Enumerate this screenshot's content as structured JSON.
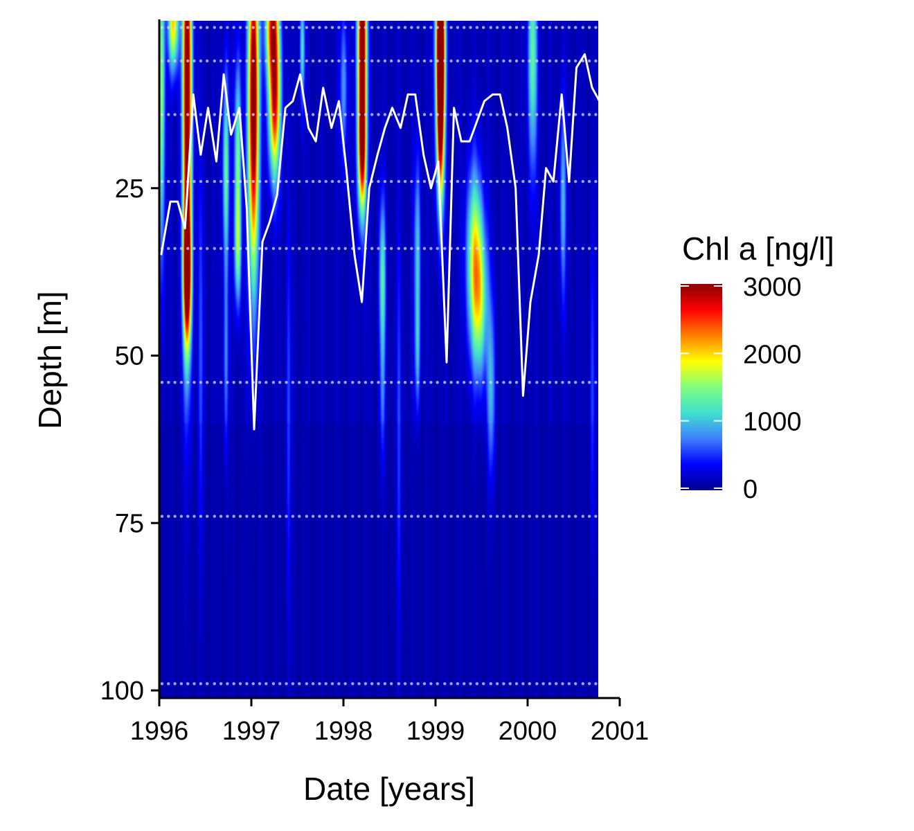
{
  "chart_data": {
    "type": "heatmap",
    "title": "",
    "xlabel": "Date [years]",
    "ylabel": "Depth [m]",
    "xlim": [
      1996.0,
      2001.0
    ],
    "ylim": [
      100,
      0
    ],
    "x_ticks": [
      {
        "value": 1996,
        "label": "1996"
      },
      {
        "value": 1997,
        "label": "1997"
      },
      {
        "value": 1998,
        "label": "1998"
      },
      {
        "value": 1999,
        "label": "1999"
      },
      {
        "value": 2000,
        "label": "2000"
      },
      {
        "value": 2001,
        "label": "2001"
      }
    ],
    "y_ticks": [
      {
        "value": 25,
        "label": "25"
      },
      {
        "value": 50,
        "label": "50"
      },
      {
        "value": 75,
        "label": "75"
      },
      {
        "value": 100,
        "label": "100"
      }
    ],
    "data_x_max": 2000.77,
    "legend": {
      "title": "Chl a [ng/l]",
      "position": "right",
      "min": 0,
      "max": 3000,
      "ticks": [
        {
          "value": 0,
          "label": "0"
        },
        {
          "value": 1000,
          "label": "1000"
        },
        {
          "value": 2000,
          "label": "2000"
        },
        {
          "value": 3000,
          "label": "3000"
        }
      ],
      "colormap": [
        "#00008b",
        "#0000ff",
        "#3f7fff",
        "#40e0d0",
        "#7fff7f",
        "#ffff00",
        "#ff7f00",
        "#ff0000",
        "#8b0000"
      ]
    },
    "background_value": 150,
    "hotspots": [
      {
        "x": 1996.02,
        "depth": 10,
        "value": 1400,
        "sx": 0.025,
        "sd": 18
      },
      {
        "x": 1996.15,
        "depth": 0,
        "value": 1900,
        "sx": 0.04,
        "sd": 5
      },
      {
        "x": 1996.3,
        "depth": 10,
        "value": 3200,
        "sx": 0.035,
        "sd": 24
      },
      {
        "x": 1996.3,
        "depth": 38,
        "value": 2500,
        "sx": 0.03,
        "sd": 7
      },
      {
        "x": 1996.72,
        "depth": 22,
        "value": 1200,
        "sx": 0.025,
        "sd": 10
      },
      {
        "x": 1996.72,
        "depth": 50,
        "value": 600,
        "sx": 0.02,
        "sd": 10
      },
      {
        "x": 1996.85,
        "depth": 20,
        "value": 1300,
        "sx": 0.025,
        "sd": 10
      },
      {
        "x": 1996.85,
        "depth": 34,
        "value": 1100,
        "sx": 0.025,
        "sd": 6
      },
      {
        "x": 1997.02,
        "depth": 12,
        "value": 3300,
        "sx": 0.04,
        "sd": 18
      },
      {
        "x": 1997.22,
        "depth": 0,
        "value": 2100,
        "sx": 0.05,
        "sd": 6
      },
      {
        "x": 1997.25,
        "depth": 12,
        "value": 2500,
        "sx": 0.045,
        "sd": 8
      },
      {
        "x": 1997.55,
        "depth": 4,
        "value": 1000,
        "sx": 0.02,
        "sd": 6
      },
      {
        "x": 1998.0,
        "depth": 10,
        "value": 700,
        "sx": 0.03,
        "sd": 8
      },
      {
        "x": 1998.2,
        "depth": 3,
        "value": 3300,
        "sx": 0.035,
        "sd": 14
      },
      {
        "x": 1998.2,
        "depth": 20,
        "value": 1700,
        "sx": 0.03,
        "sd": 6
      },
      {
        "x": 1998.42,
        "depth": 38,
        "value": 1100,
        "sx": 0.025,
        "sd": 8
      },
      {
        "x": 1998.42,
        "depth": 55,
        "value": 550,
        "sx": 0.02,
        "sd": 8
      },
      {
        "x": 1998.8,
        "depth": 35,
        "value": 900,
        "sx": 0.025,
        "sd": 10
      },
      {
        "x": 1998.8,
        "depth": 50,
        "value": 600,
        "sx": 0.02,
        "sd": 6
      },
      {
        "x": 1999.05,
        "depth": 0,
        "value": 3100,
        "sx": 0.035,
        "sd": 10
      },
      {
        "x": 1999.05,
        "depth": 14,
        "value": 2800,
        "sx": 0.03,
        "sd": 10
      },
      {
        "x": 1999.42,
        "depth": 35,
        "value": 1500,
        "sx": 0.06,
        "sd": 9
      },
      {
        "x": 1999.48,
        "depth": 42,
        "value": 1200,
        "sx": 0.06,
        "sd": 8
      },
      {
        "x": 1999.6,
        "depth": 55,
        "value": 800,
        "sx": 0.03,
        "sd": 9
      },
      {
        "x": 2000.05,
        "depth": 5,
        "value": 1200,
        "sx": 0.035,
        "sd": 12
      },
      {
        "x": 2000.38,
        "depth": 27,
        "value": 800,
        "sx": 0.025,
        "sd": 10
      },
      {
        "x": 1996.45,
        "depth": 50,
        "value": 450,
        "sx": 0.02,
        "sd": 20
      },
      {
        "x": 1997.4,
        "depth": 60,
        "value": 400,
        "sx": 0.02,
        "sd": 20
      },
      {
        "x": 1998.6,
        "depth": 62,
        "value": 400,
        "sx": 0.02,
        "sd": 20
      },
      {
        "x": 2000.7,
        "depth": 55,
        "value": 400,
        "sx": 0.02,
        "sd": 15
      }
    ],
    "sample_depths": [
      1,
      6,
      14,
      24,
      34,
      54,
      74,
      99
    ],
    "sample_dates": [
      1996.03,
      1996.1,
      1996.17,
      1996.24,
      1996.31,
      1996.38,
      1996.45,
      1996.52,
      1996.6,
      1996.67,
      1996.74,
      1996.81,
      1996.88,
      1996.95,
      1997.02,
      1997.09,
      1997.16,
      1997.24,
      1997.31,
      1997.38,
      1997.45,
      1997.52,
      1997.6,
      1997.67,
      1997.74,
      1997.81,
      1997.88,
      1997.95,
      1998.02,
      1998.1,
      1998.17,
      1998.24,
      1998.31,
      1998.38,
      1998.45,
      1998.52,
      1998.6,
      1998.67,
      1998.74,
      1998.81,
      1998.88,
      1998.95,
      1999.02,
      1999.1,
      1999.17,
      1999.24,
      1999.31,
      1999.38,
      1999.45,
      1999.52,
      1999.6,
      1999.67,
      1999.74,
      1999.81,
      1999.88,
      1999.95,
      2000.02,
      2000.1,
      2000.17,
      2000.24,
      2000.31,
      2000.38,
      2000.45,
      2000.52,
      2000.6,
      2000.67,
      2000.74
    ],
    "line_series": {
      "x": [
        1996.02,
        1996.12,
        1996.2,
        1996.28,
        1996.37,
        1996.45,
        1996.53,
        1996.62,
        1996.7,
        1996.78,
        1996.87,
        1996.95,
        1997.03,
        1997.12,
        1997.2,
        1997.28,
        1997.37,
        1997.45,
        1997.53,
        1997.62,
        1997.7,
        1997.78,
        1997.87,
        1997.95,
        1998.03,
        1998.12,
        1998.2,
        1998.28,
        1998.37,
        1998.45,
        1998.53,
        1998.62,
        1998.7,
        1998.78,
        1998.87,
        1998.95,
        1999.03,
        1999.12,
        1999.2,
        1999.28,
        1999.37,
        1999.45,
        1999.53,
        1999.62,
        1999.7,
        1999.78,
        1999.87,
        1999.95,
        2000.03,
        2000.12,
        2000.2,
        2000.28,
        2000.37,
        2000.45,
        2000.53,
        2000.62,
        2000.7,
        2000.78
      ],
      "y": [
        35,
        27,
        27,
        31,
        11,
        20,
        13,
        21,
        8,
        17,
        13,
        28,
        61,
        33,
        30,
        26,
        13,
        12,
        8,
        16,
        18,
        10,
        16,
        12,
        22,
        35,
        42,
        25,
        20,
        16,
        13,
        16,
        11,
        11,
        20,
        25,
        21,
        51,
        13,
        18,
        18,
        15,
        12,
        11,
        11,
        16,
        25,
        56,
        42,
        35,
        22,
        24,
        11,
        24,
        7,
        5,
        10,
        12
      ]
    }
  }
}
